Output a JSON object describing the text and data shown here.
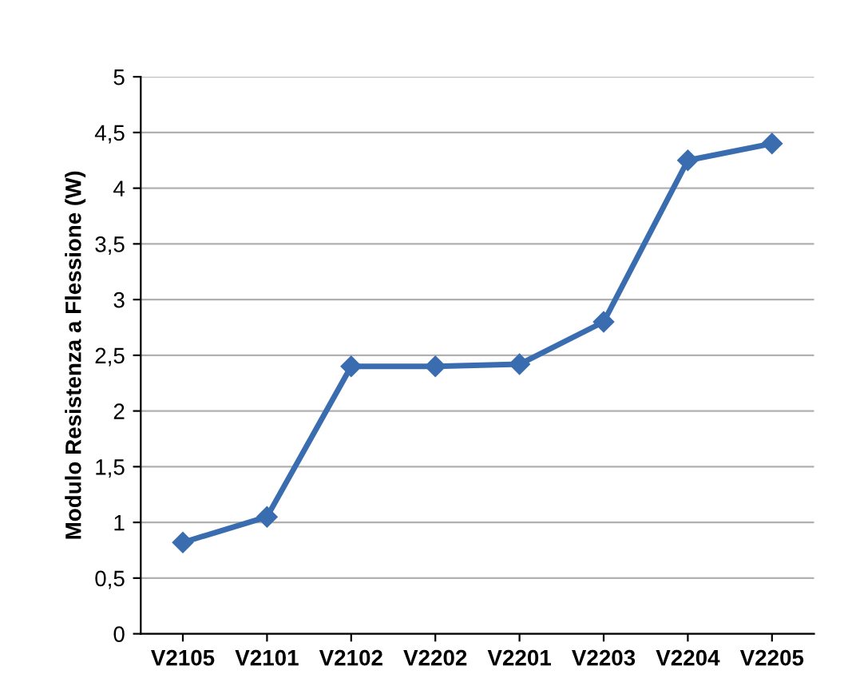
{
  "chart_data": {
    "type": "line",
    "ylabel": "Modulo Resistenza a Flessione (W)",
    "categories": [
      "V2105",
      "V2101",
      "V2102",
      "V2202",
      "V2201",
      "V2203",
      "V2204",
      "V2205"
    ],
    "series": [
      {
        "color": "#3a6db0",
        "values": [
          0.82,
          1.05,
          2.4,
          2.4,
          2.42,
          2.8,
          4.25,
          4.4
        ]
      }
    ],
    "ylim": [
      0,
      5
    ],
    "yticks": [
      0,
      {
        "value": 0.5,
        "label": "0,5"
      },
      1,
      {
        "value": 1.5,
        "label": "1,5"
      },
      2,
      {
        "value": 2.5,
        "label": "2,5"
      },
      3,
      {
        "value": 3.5,
        "label": "3,5"
      },
      4,
      {
        "value": 4.5,
        "label": "4,5"
      },
      5
    ],
    "grid": "y",
    "marker": "diamond",
    "line_style": "solid",
    "legend": false
  }
}
